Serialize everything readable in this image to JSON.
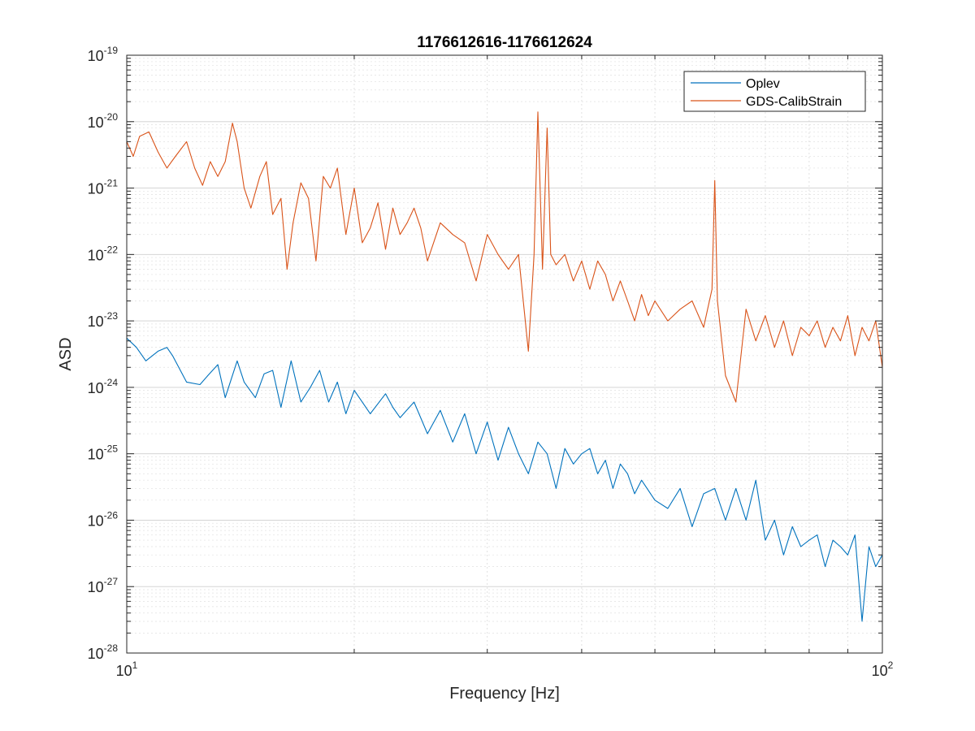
{
  "chart_data": {
    "type": "line",
    "title": "1176612616-1176612624",
    "xlabel": "Frequency [Hz]",
    "ylabel": "ASD",
    "xscale": "log",
    "yscale": "log",
    "xlim": [
      10,
      100
    ],
    "ylim": [
      1e-28,
      1e-19
    ],
    "grid": true,
    "legend": "top-right",
    "x_ticks": [
      {
        "value": 10,
        "base": "10",
        "exp": "1"
      },
      {
        "value": 100,
        "base": "10",
        "exp": "2"
      }
    ],
    "y_ticks": [
      {
        "value": 1e-19,
        "base": "10",
        "exp": "-19"
      },
      {
        "value": 1e-20,
        "base": "10",
        "exp": "-20"
      },
      {
        "value": 1e-21,
        "base": "10",
        "exp": "-21"
      },
      {
        "value": 1e-22,
        "base": "10",
        "exp": "-22"
      },
      {
        "value": 1e-23,
        "base": "10",
        "exp": "-23"
      },
      {
        "value": 1e-24,
        "base": "10",
        "exp": "-24"
      },
      {
        "value": 1e-25,
        "base": "10",
        "exp": "-25"
      },
      {
        "value": 1e-26,
        "base": "10",
        "exp": "-26"
      },
      {
        "value": 1e-27,
        "base": "10",
        "exp": "-27"
      },
      {
        "value": 1e-28,
        "base": "10",
        "exp": "-28"
      }
    ],
    "series": [
      {
        "name": "Oplev",
        "color": "#0072BD",
        "x": [
          10,
          10.3,
          10.6,
          11,
          11.3,
          11.5,
          12,
          12.5,
          12.8,
          13.2,
          13.5,
          14,
          14.3,
          14.8,
          15.2,
          15.6,
          16,
          16.5,
          17,
          17.5,
          18,
          18.5,
          19,
          19.5,
          20,
          21,
          22,
          22.5,
          23,
          24,
          25,
          26,
          27,
          28,
          29,
          30,
          31,
          32,
          33,
          34,
          35,
          36,
          37,
          38,
          39,
          40,
          41,
          42,
          43,
          44,
          45,
          46,
          47,
          48,
          50,
          52,
          54,
          56,
          58,
          60,
          62,
          64,
          66,
          68,
          70,
          72,
          74,
          76,
          78,
          80,
          82,
          84,
          86,
          88,
          90,
          92,
          94,
          96,
          98,
          100
        ],
        "y": [
          5.5e-24,
          4e-24,
          2.5e-24,
          3.5e-24,
          4e-24,
          3e-24,
          1.2e-24,
          1.1e-24,
          1.5e-24,
          2.2e-24,
          7e-25,
          2.5e-24,
          1.2e-24,
          7e-25,
          1.6e-24,
          1.8e-24,
          5e-25,
          2.5e-24,
          6e-25,
          1e-24,
          1.8e-24,
          6e-25,
          1.2e-24,
          4e-25,
          9e-25,
          4e-25,
          8e-25,
          5e-25,
          3.5e-25,
          6e-25,
          2e-25,
          4.5e-25,
          1.5e-25,
          4e-25,
          1e-25,
          3e-25,
          8e-26,
          2.5e-25,
          1e-25,
          5e-26,
          1.5e-25,
          1e-25,
          3e-26,
          1.2e-25,
          7e-26,
          1e-25,
          1.2e-25,
          5e-26,
          8e-26,
          3e-26,
          7e-26,
          5e-26,
          2.5e-26,
          4e-26,
          2e-26,
          1.5e-26,
          3e-26,
          8e-27,
          2.5e-26,
          3e-26,
          1e-26,
          3e-26,
          1e-26,
          4e-26,
          5e-27,
          1e-26,
          3e-27,
          8e-27,
          4e-27,
          5e-27,
          6e-27,
          2e-27,
          5e-27,
          4e-27,
          3e-27,
          6e-27,
          3e-28,
          4e-27,
          2e-27,
          3e-27
        ]
      },
      {
        "name": "GDS-CalibStrain",
        "color": "#D95319",
        "x": [
          10,
          10.2,
          10.4,
          10.7,
          11,
          11.3,
          11.6,
          12,
          12.3,
          12.6,
          12.9,
          13.2,
          13.5,
          13.8,
          14,
          14.3,
          14.6,
          15,
          15.3,
          15.6,
          16,
          16.3,
          16.6,
          17,
          17.4,
          17.8,
          18.2,
          18.6,
          19,
          19.5,
          20,
          20.5,
          21,
          21.5,
          22,
          22.5,
          23,
          23.5,
          24,
          24.5,
          25,
          26,
          27,
          28,
          29,
          30,
          31,
          32,
          33,
          34,
          34.6,
          35,
          35.5,
          36,
          36.4,
          37,
          38,
          39,
          40,
          41,
          42,
          43,
          44,
          45,
          46,
          47,
          48,
          49,
          50,
          52,
          54,
          56,
          58,
          59.5,
          60,
          60.5,
          62,
          64,
          66,
          68,
          70,
          72,
          74,
          76,
          78,
          80,
          82,
          84,
          86,
          88,
          90,
          92,
          94,
          96,
          98,
          100
        ],
        "y": [
          5e-21,
          3e-21,
          6e-21,
          7e-21,
          3.5e-21,
          2e-21,
          3e-21,
          5e-21,
          2e-21,
          1.1e-21,
          2.5e-21,
          1.5e-21,
          2.5e-21,
          9.5e-21,
          5e-21,
          1e-21,
          5e-22,
          1.5e-21,
          2.5e-21,
          4e-22,
          7e-22,
          6e-23,
          3e-22,
          1.2e-21,
          7e-22,
          8e-23,
          1.5e-21,
          1e-21,
          2e-21,
          2e-22,
          1e-21,
          1.5e-22,
          2.5e-22,
          6e-22,
          1.2e-22,
          5e-22,
          2e-22,
          3e-22,
          5e-22,
          2.5e-22,
          8e-23,
          3e-22,
          2e-22,
          1.5e-22,
          4e-23,
          2e-22,
          1e-22,
          6e-23,
          1e-22,
          3.5e-24,
          1e-22,
          1.4e-20,
          6e-23,
          8e-21,
          1e-22,
          7e-23,
          1e-22,
          4e-23,
          8e-23,
          3e-23,
          8e-23,
          5e-23,
          2e-23,
          4e-23,
          2e-23,
          1e-23,
          2.5e-23,
          1.2e-23,
          2e-23,
          1e-23,
          1.5e-23,
          2e-23,
          8e-24,
          3e-23,
          1.3e-21,
          2e-23,
          1.5e-24,
          6e-25,
          1.5e-23,
          5e-24,
          1.2e-23,
          4e-24,
          1e-23,
          3e-24,
          8e-24,
          6e-24,
          1e-23,
          4e-24,
          8e-24,
          5e-24,
          1.2e-23,
          3e-24,
          8e-24,
          5e-24,
          1e-23,
          2e-24
        ]
      }
    ]
  }
}
